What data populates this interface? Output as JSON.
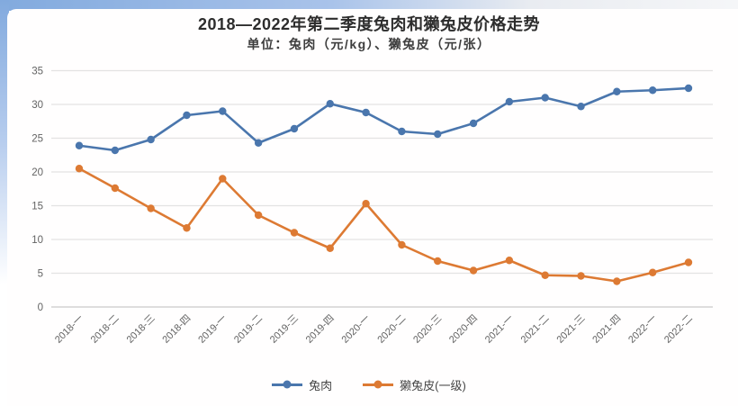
{
  "chart_data": {
    "type": "line",
    "title": "2018—2022年第二季度兔肉和獭兔皮价格走势",
    "subtitle": "单位：兔肉（元/kg）、獭兔皮（元/张）",
    "categories": [
      "2018-一",
      "2018-二",
      "2018-三",
      "2018-四",
      "2019-一",
      "2019-二",
      "2019-三",
      "2019-四",
      "2020-一",
      "2020-二",
      "2020-三",
      "2020-四",
      "2021-一",
      "2021-二",
      "2021-三",
      "2021-四",
      "2022-一",
      "2022-二"
    ],
    "series": [
      {
        "key": "meat",
        "name": "兔肉",
        "color": "#4a76ad",
        "values": [
          23.9,
          23.2,
          24.8,
          28.4,
          29,
          24.3,
          26.4,
          30.1,
          28.8,
          26,
          25.6,
          27.2,
          30.4,
          31,
          29.7,
          31.9,
          32.1,
          32.4
        ]
      },
      {
        "key": "skin",
        "name": "獭兔皮(一级)",
        "color": "#dd7a33",
        "values": [
          20.5,
          17.6,
          14.6,
          11.7,
          19,
          13.6,
          11,
          8.7,
          15.3,
          9.2,
          6.8,
          5.4,
          6.9,
          4.7,
          4.6,
          3.8,
          5.1,
          6.6
        ]
      }
    ],
    "y_ticks": [
      0,
      5,
      10,
      15,
      20,
      25,
      30,
      35
    ],
    "ylim": [
      0,
      35
    ],
    "xlabel": "",
    "ylabel": "",
    "grid": true,
    "legend_position": "bottom"
  },
  "style": {
    "grid_color": "#e3e3e3",
    "axis_line_color": "#c9c9c9",
    "tick_text_color": "#636363",
    "title_color": "#2d2d2d",
    "subtitle_color": "#3d3d3d"
  }
}
